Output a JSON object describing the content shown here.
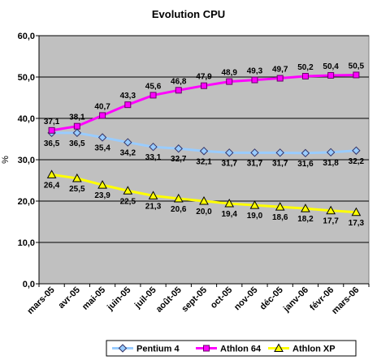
{
  "chart_data": {
    "type": "line",
    "title": "Evolution CPU",
    "xlabel": "",
    "ylabel": "%",
    "ylim": [
      0,
      60
    ],
    "yticks": [
      "0,0",
      "10,0",
      "20,0",
      "30,0",
      "40,0",
      "50,0",
      "60,0"
    ],
    "grid": true,
    "legend_position": "bottom",
    "plot_background": "#c0c0c0",
    "categories": [
      "mars-05",
      "avr-05",
      "mai-05",
      "juin-05",
      "juil-05",
      "août-05",
      "sept-05",
      "oct-05",
      "nov-05",
      "déc-05",
      "janv-06",
      "févr-06",
      "mars-06"
    ],
    "series": [
      {
        "name": "Pentium 4",
        "color": "#99ccff",
        "marker": "diamond",
        "values": [
          36.5,
          36.5,
          35.4,
          34.2,
          33.1,
          32.7,
          32.1,
          31.7,
          31.7,
          31.7,
          31.6,
          31.8,
          32.2
        ],
        "labels": [
          "36,5",
          "36,5",
          "35,4",
          "34,2",
          "33,1",
          "32,7",
          "32,1",
          "31,7",
          "31,7",
          "31,7",
          "31,6",
          "31,8",
          "32,2"
        ]
      },
      {
        "name": "Athlon 64",
        "color": "#ff00ff",
        "marker": "square",
        "values": [
          37.1,
          38.1,
          40.7,
          43.3,
          45.6,
          46.8,
          47.9,
          48.9,
          49.3,
          49.7,
          50.2,
          50.4,
          50.5
        ],
        "labels": [
          "37,1",
          "38,1",
          "40,7",
          "43,3",
          "45,6",
          "46,8",
          "47,9",
          "48,9",
          "49,3",
          "49,7",
          "50,2",
          "50,4",
          "50,5"
        ]
      },
      {
        "name": "Athlon XP",
        "color": "#ffff00",
        "marker": "triangle",
        "values": [
          26.4,
          25.5,
          23.9,
          22.5,
          21.3,
          20.6,
          20.0,
          19.4,
          19.0,
          18.6,
          18.2,
          17.7,
          17.3
        ],
        "labels": [
          "26,4",
          "25,5",
          "23,9",
          "22,5",
          "21,3",
          "20,6",
          "20,0",
          "19,4",
          "19,0",
          "18,6",
          "18,2",
          "17,7",
          "17,3"
        ]
      }
    ]
  }
}
